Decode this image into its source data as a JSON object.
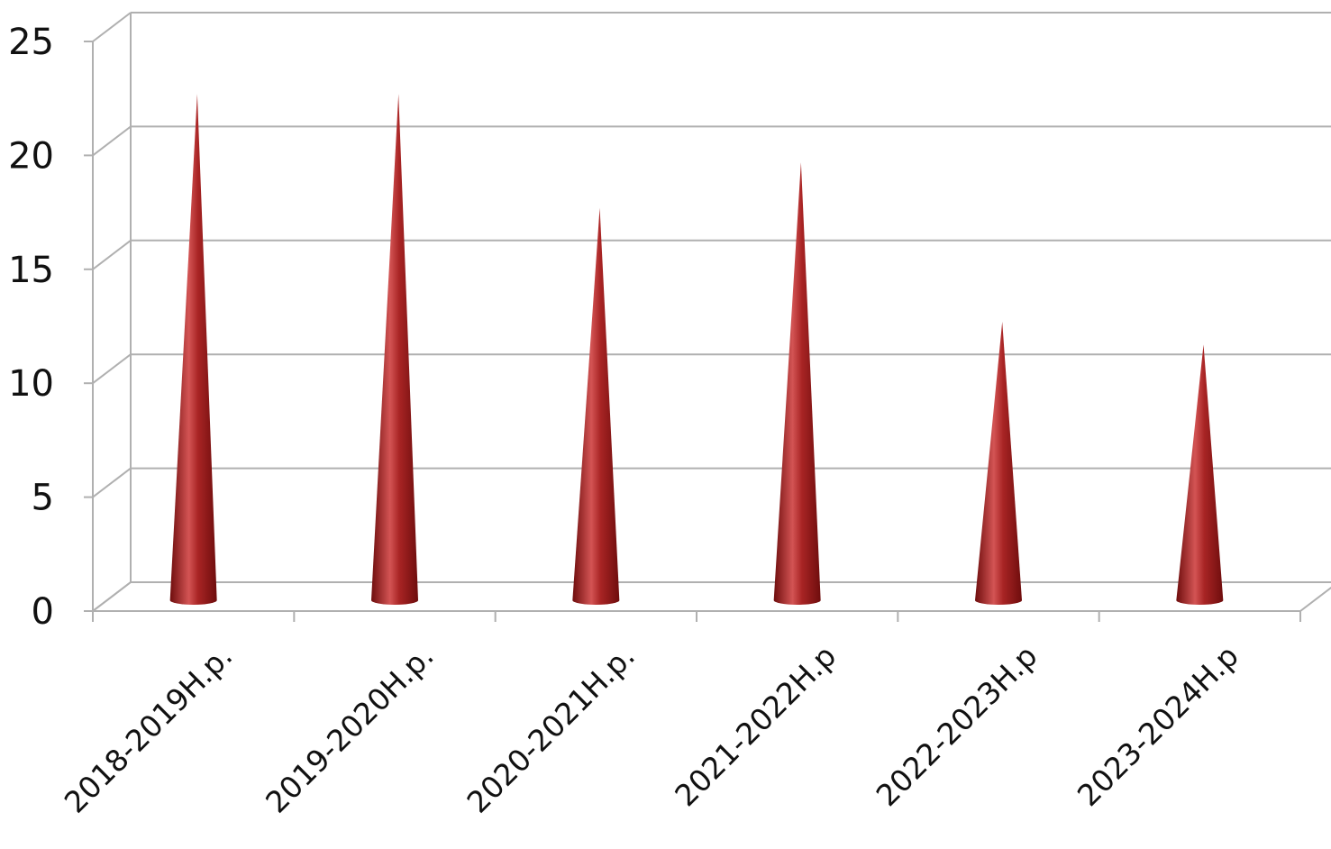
{
  "chart_data": {
    "type": "bar",
    "style": "3d-cone",
    "title": "",
    "xlabel": "",
    "ylabel": "",
    "categories": [
      "2018-2019H.p.",
      "2019-2020H.p.",
      "2020-2021H.p.",
      "2021-2022H.p",
      "2022-2023H.p",
      "2023-2024H.p"
    ],
    "values": [
      22,
      22,
      17,
      19,
      12,
      11
    ],
    "ylim": [
      0,
      25
    ],
    "yticks": [
      0,
      5,
      10,
      15,
      20,
      25
    ],
    "ytick_labels": [
      "0",
      "5",
      "10",
      "15",
      "20",
      "25"
    ],
    "grid": true,
    "legend": "none",
    "colors": {
      "cone_dark": "#6e0d0d",
      "cone_mid": "#a82424",
      "cone_light": "#d35454",
      "grid": "#b0b0b0"
    }
  }
}
